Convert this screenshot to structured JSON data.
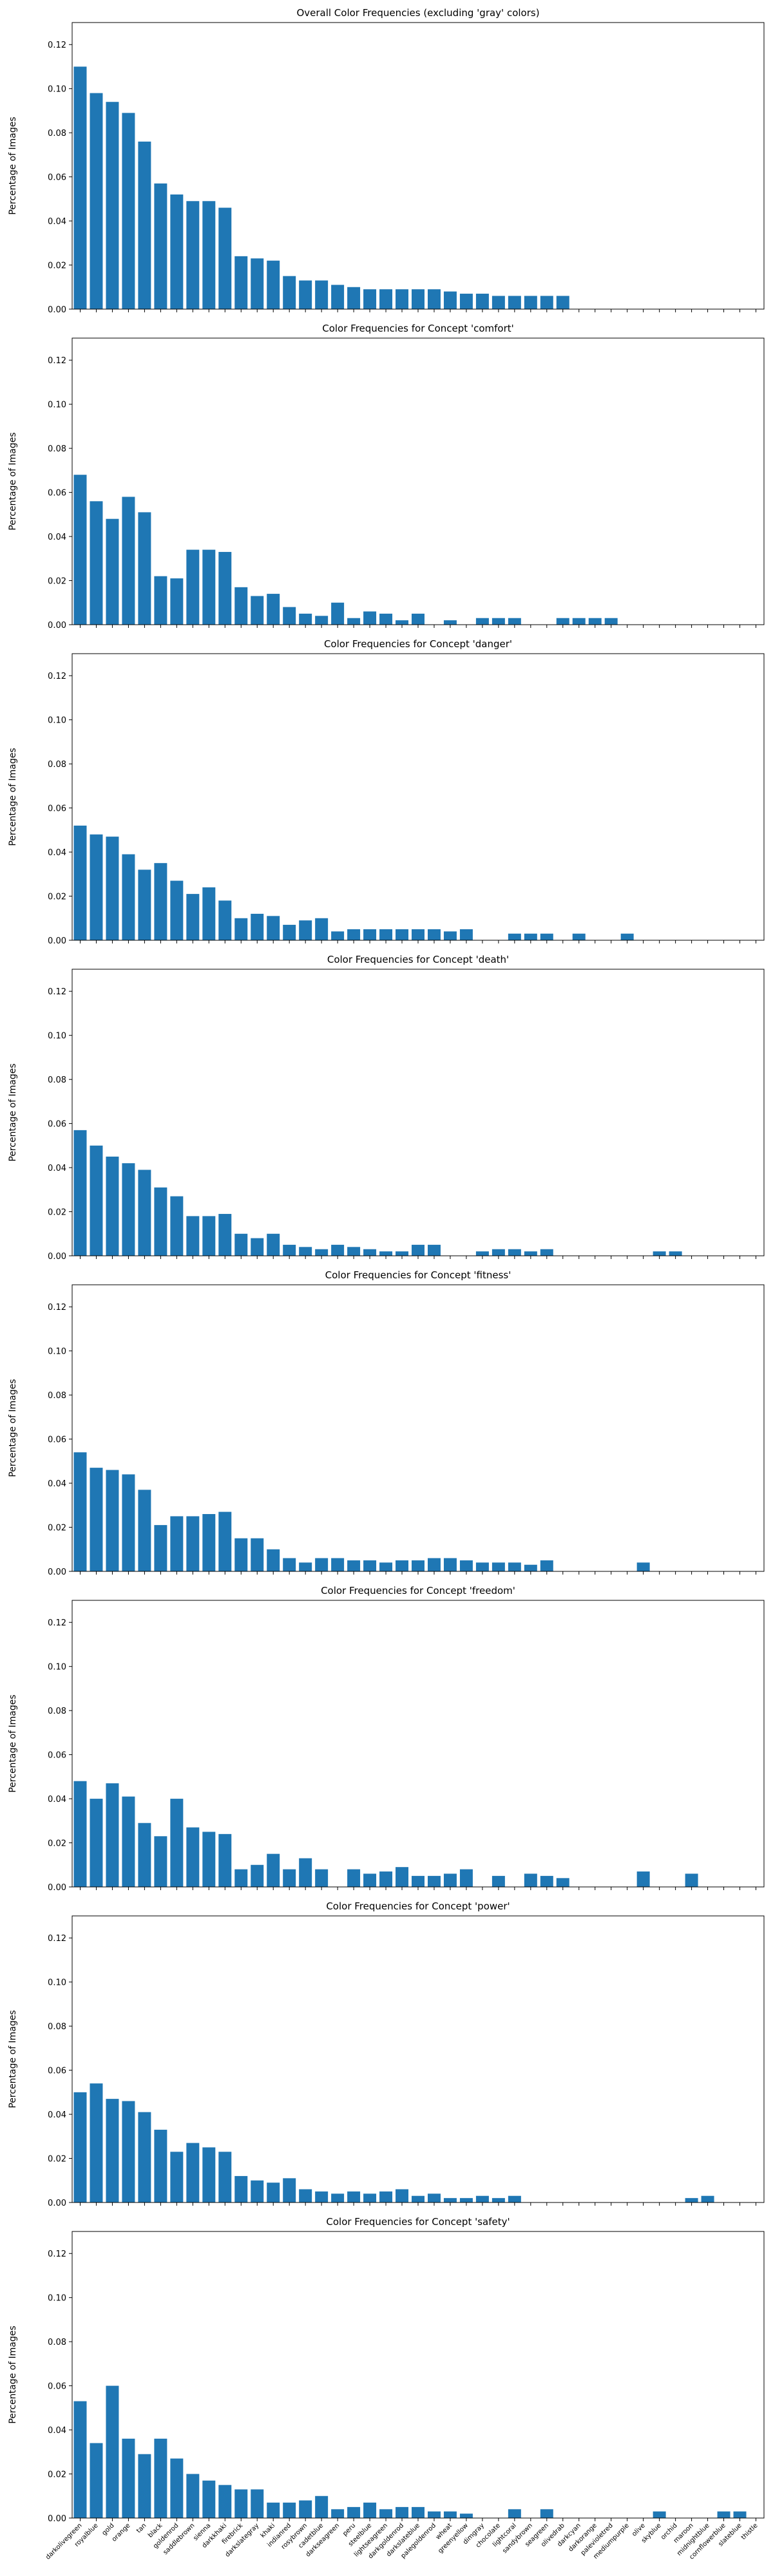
{
  "chart_data": [
    {
      "type": "bar",
      "title": "Overall Color Frequencies (excluding 'gray' colors)",
      "xlabel": "",
      "ylabel": "Percentage of Images",
      "ylim": [
        0,
        0.13
      ],
      "yticks": [
        "0.00",
        "0.02",
        "0.04",
        "0.06",
        "0.08",
        "0.10",
        "0.12"
      ],
      "bar_color": "#1f77b4",
      "values": [
        0.11,
        0.098,
        0.094,
        0.089,
        0.076,
        0.057,
        0.052,
        0.049,
        0.049,
        0.046,
        0.024,
        0.023,
        0.022,
        0.015,
        0.013,
        0.013,
        0.011,
        0.01,
        0.009,
        0.009,
        0.009,
        0.009,
        0.009,
        0.008,
        0.007,
        0.007,
        0.006,
        0.006,
        0.006,
        0.006,
        0.006,
        0,
        0,
        0,
        0,
        0,
        0,
        0,
        0,
        0,
        0,
        0,
        0
      ]
    },
    {
      "type": "bar",
      "title": "Color Frequencies for Concept 'comfort'",
      "xlabel": "",
      "ylabel": "Percentage of Images",
      "ylim": [
        0,
        0.13
      ],
      "yticks": [
        "0.00",
        "0.02",
        "0.04",
        "0.06",
        "0.08",
        "0.10",
        "0.12"
      ],
      "bar_color": "#1f77b4",
      "values": [
        0.068,
        0.056,
        0.048,
        0.058,
        0.051,
        0.022,
        0.021,
        0.034,
        0.034,
        0.033,
        0.017,
        0.013,
        0.014,
        0.008,
        0.005,
        0.004,
        0.01,
        0.003,
        0.006,
        0.005,
        0.002,
        0.005,
        0,
        0.002,
        0,
        0.003,
        0.003,
        0.003,
        0,
        0,
        0.003,
        0.003,
        0.003,
        0.003,
        0,
        0,
        0,
        0,
        0,
        0,
        0,
        0,
        0
      ]
    },
    {
      "type": "bar",
      "title": "Color Frequencies for Concept 'danger'",
      "xlabel": "",
      "ylabel": "Percentage of Images",
      "ylim": [
        0,
        0.13
      ],
      "yticks": [
        "0.00",
        "0.02",
        "0.04",
        "0.06",
        "0.08",
        "0.10",
        "0.12"
      ],
      "bar_color": "#1f77b4",
      "values": [
        0.052,
        0.048,
        0.047,
        0.039,
        0.032,
        0.035,
        0.027,
        0.021,
        0.024,
        0.018,
        0.01,
        0.012,
        0.011,
        0.007,
        0.009,
        0.01,
        0.004,
        0.005,
        0.005,
        0.005,
        0.005,
        0.005,
        0.005,
        0.004,
        0.005,
        0,
        0,
        0.003,
        0.003,
        0.003,
        0,
        0.003,
        0,
        0,
        0.003,
        0,
        0,
        0,
        0,
        0,
        0,
        0,
        0
      ]
    },
    {
      "type": "bar",
      "title": "Color Frequencies for Concept 'death'",
      "xlabel": "",
      "ylabel": "Percentage of Images",
      "ylim": [
        0,
        0.13
      ],
      "yticks": [
        "0.00",
        "0.02",
        "0.04",
        "0.06",
        "0.08",
        "0.10",
        "0.12"
      ],
      "bar_color": "#1f77b4",
      "values": [
        0.057,
        0.05,
        0.045,
        0.042,
        0.039,
        0.031,
        0.027,
        0.018,
        0.018,
        0.019,
        0.01,
        0.008,
        0.01,
        0.005,
        0.004,
        0.003,
        0.005,
        0.004,
        0.003,
        0.002,
        0.002,
        0.005,
        0.005,
        0,
        0,
        0.002,
        0.003,
        0.003,
        0.002,
        0.003,
        0,
        0,
        0,
        0,
        0,
        0,
        0.002,
        0.002,
        0,
        0,
        0,
        0,
        0
      ]
    },
    {
      "type": "bar",
      "title": "Color Frequencies for Concept 'fitness'",
      "xlabel": "",
      "ylabel": "Percentage of Images",
      "ylim": [
        0,
        0.13
      ],
      "yticks": [
        "0.00",
        "0.02",
        "0.04",
        "0.06",
        "0.08",
        "0.10",
        "0.12"
      ],
      "bar_color": "#1f77b4",
      "values": [
        0.054,
        0.047,
        0.046,
        0.044,
        0.037,
        0.021,
        0.025,
        0.025,
        0.026,
        0.027,
        0.015,
        0.015,
        0.01,
        0.006,
        0.004,
        0.006,
        0.006,
        0.005,
        0.005,
        0.004,
        0.005,
        0.005,
        0.006,
        0.006,
        0.005,
        0.004,
        0.004,
        0.004,
        0.003,
        0.005,
        0,
        0,
        0,
        0,
        0,
        0.004,
        0,
        0,
        0,
        0,
        0,
        0,
        0
      ]
    },
    {
      "type": "bar",
      "title": "Color Frequencies for Concept 'freedom'",
      "xlabel": "",
      "ylabel": "Percentage of Images",
      "ylim": [
        0,
        0.13
      ],
      "yticks": [
        "0.00",
        "0.02",
        "0.04",
        "0.06",
        "0.08",
        "0.10",
        "0.12"
      ],
      "bar_color": "#1f77b4",
      "values": [
        0.048,
        0.04,
        0.047,
        0.041,
        0.029,
        0.023,
        0.04,
        0.027,
        0.025,
        0.024,
        0.008,
        0.01,
        0.015,
        0.008,
        0.013,
        0.008,
        0,
        0.008,
        0.006,
        0.007,
        0.009,
        0.005,
        0.005,
        0.006,
        0.008,
        0,
        0.005,
        0,
        0.006,
        0.005,
        0.004,
        0,
        0,
        0,
        0,
        0.007,
        0,
        0,
        0.006,
        0,
        0,
        0,
        0
      ]
    },
    {
      "type": "bar",
      "title": "Color Frequencies for Concept 'power'",
      "xlabel": "",
      "ylabel": "Percentage of Images",
      "ylim": [
        0,
        0.13
      ],
      "yticks": [
        "0.00",
        "0.02",
        "0.04",
        "0.06",
        "0.08",
        "0.10",
        "0.12"
      ],
      "bar_color": "#1f77b4",
      "values": [
        0.05,
        0.054,
        0.047,
        0.046,
        0.041,
        0.033,
        0.023,
        0.027,
        0.025,
        0.023,
        0.012,
        0.01,
        0.009,
        0.011,
        0.006,
        0.005,
        0.004,
        0.005,
        0.004,
        0.005,
        0.006,
        0.003,
        0.004,
        0.002,
        0.002,
        0.003,
        0.002,
        0.003,
        0,
        0,
        0,
        0,
        0,
        0,
        0,
        0,
        0,
        0,
        0.002,
        0.003,
        0,
        0,
        0
      ]
    },
    {
      "type": "bar",
      "title": "Color Frequencies for Concept 'safety'",
      "xlabel": "",
      "ylabel": "Percentage of Images",
      "ylim": [
        0,
        0.13
      ],
      "yticks": [
        "0.00",
        "0.02",
        "0.04",
        "0.06",
        "0.08",
        "0.10",
        "0.12"
      ],
      "bar_color": "#1f77b4",
      "categories": [
        "darkolivegreen",
        "royalblue",
        "gold",
        "orange",
        "tan",
        "black",
        "goldenrod",
        "saddlebrown",
        "sienna",
        "darkkhaki",
        "firebrick",
        "darkslategray",
        "khaki",
        "indianred",
        "rosybrown",
        "cadetblue",
        "darkseagreen",
        "peru",
        "steelblue",
        "lightseagreen",
        "darkgoldenrod",
        "darkslateblue",
        "palegoldenrod",
        "wheat",
        "greenyellow",
        "dimgray",
        "chocolate",
        "lightcoral",
        "sandybrown",
        "seagreen",
        "olivedrab",
        "darkcyan",
        "darkorange",
        "palevioletred",
        "mediumpurple",
        "olive",
        "skyblue",
        "orchid",
        "maroon",
        "midnightblue",
        "cornflowerblue",
        "slateblue",
        "thistle"
      ],
      "values": [
        0.053,
        0.034,
        0.06,
        0.036,
        0.029,
        0.036,
        0.027,
        0.02,
        0.017,
        0.015,
        0.013,
        0.013,
        0.007,
        0.007,
        0.008,
        0.01,
        0.004,
        0.005,
        0.007,
        0.004,
        0.005,
        0.005,
        0.003,
        0.003,
        0.002,
        0,
        0,
        0.004,
        0,
        0.004,
        0,
        0,
        0,
        0,
        0,
        0,
        0.003,
        0,
        0,
        0,
        0.003,
        0.003,
        0
      ]
    }
  ]
}
